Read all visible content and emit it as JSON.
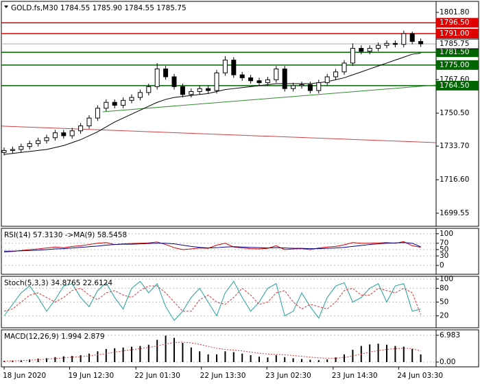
{
  "chart_data": [
    {
      "type": "candlestick",
      "title": "GOLD.fs,M30  1784.55 1785.90 1784.55 1785.75",
      "ylim": [
        1692.9,
        1807.4
      ],
      "yticks": [
        {
          "value": 1801.8,
          "label": "1801.80"
        },
        {
          "value": 1767.6,
          "label": "1767.60"
        },
        {
          "value": 1750.5,
          "label": "1750.50"
        },
        {
          "value": 1733.7,
          "label": "1733.70"
        },
        {
          "value": 1716.6,
          "label": "1716.60"
        },
        1699.55
      ],
      "open": [
        1730.5,
        1731.5,
        1732.0,
        1733.5,
        1735.0,
        1736.5,
        1738.0,
        1740.5,
        1739.0,
        1741.5,
        1744.0,
        1748.0,
        1753.0,
        1756.0,
        1754.5,
        1757.0,
        1758.5,
        1761.0,
        1764.0,
        1773.0,
        1769.0,
        1764.0,
        1760.0,
        1761.5,
        1763.0,
        1762.0,
        1771.0,
        1777.5,
        1770.0,
        1768.5,
        1767.0,
        1766.0,
        1767.5,
        1773.0,
        1763.0,
        1764.5,
        1765.0,
        1762.0,
        1766.0,
        1769.0,
        1771.5,
        1776.0,
        1783.5,
        1782.0,
        1783.5,
        1785.0,
        1786.0,
        1785.5,
        1791.0,
        1787.0
      ],
      "high": [
        1733.0,
        1733.5,
        1735.0,
        1736.5,
        1738.0,
        1739.5,
        1742.0,
        1742.0,
        1743.0,
        1745.5,
        1749.5,
        1754.5,
        1757.5,
        1757.5,
        1758.5,
        1760.0,
        1762.5,
        1765.5,
        1776.0,
        1774.5,
        1770.5,
        1765.5,
        1763.0,
        1764.5,
        1764.5,
        1772.5,
        1779.5,
        1779.0,
        1771.5,
        1770.0,
        1768.5,
        1769.0,
        1774.5,
        1774.5,
        1766.0,
        1766.5,
        1766.5,
        1767.5,
        1770.5,
        1773.0,
        1777.5,
        1786.0,
        1785.0,
        1785.0,
        1786.5,
        1787.5,
        1787.5,
        1792.5,
        1792.0,
        1788.5
      ],
      "low": [
        1729.0,
        1730.0,
        1730.5,
        1732.0,
        1733.5,
        1735.0,
        1736.5,
        1737.5,
        1737.5,
        1740.0,
        1742.5,
        1746.5,
        1751.5,
        1753.0,
        1753.0,
        1755.5,
        1757.0,
        1759.5,
        1762.5,
        1767.5,
        1762.5,
        1758.5,
        1758.5,
        1760.0,
        1760.5,
        1760.5,
        1769.5,
        1768.5,
        1767.0,
        1765.5,
        1764.5,
        1764.5,
        1766.0,
        1761.5,
        1761.5,
        1763.0,
        1760.5,
        1760.5,
        1764.5,
        1767.5,
        1770.0,
        1774.5,
        1780.5,
        1780.5,
        1782.0,
        1783.5,
        1784.0,
        1784.0,
        1785.5,
        1784.25
      ],
      "close": [
        1731.5,
        1732.0,
        1733.5,
        1735.0,
        1736.5,
        1738.0,
        1740.5,
        1739.0,
        1741.5,
        1744.0,
        1748.0,
        1753.0,
        1756.0,
        1754.5,
        1757.0,
        1758.5,
        1761.0,
        1764.0,
        1773.0,
        1769.0,
        1764.0,
        1760.0,
        1761.5,
        1763.0,
        1762.0,
        1771.0,
        1777.5,
        1770.0,
        1768.5,
        1767.0,
        1766.0,
        1767.5,
        1773.0,
        1763.0,
        1764.5,
        1765.0,
        1762.0,
        1766.0,
        1769.0,
        1771.5,
        1776.0,
        1783.5,
        1782.0,
        1783.5,
        1785.0,
        1786.0,
        1785.5,
        1791.0,
        1787.0,
        1785.75
      ],
      "ma": {
        "color": "#000000",
        "values": [
          1729.5,
          1730.0,
          1730.5,
          1731.0,
          1731.5,
          1732.0,
          1733.0,
          1734.0,
          1735.5,
          1737.0,
          1739.0,
          1741.0,
          1743.5,
          1746.0,
          1748.0,
          1750.0,
          1752.0,
          1754.0,
          1756.0,
          1757.5,
          1758.5,
          1759.0,
          1759.5,
          1760.0,
          1760.5,
          1761.5,
          1762.5,
          1763.0,
          1763.5,
          1764.0,
          1764.5,
          1765.0,
          1765.5,
          1765.5,
          1765.5,
          1765.5,
          1765.5,
          1766.0,
          1766.5,
          1767.5,
          1768.5,
          1770.0,
          1771.5,
          1773.0,
          1774.5,
          1776.0,
          1777.5,
          1779.0,
          1780.5,
          1781.0
        ]
      },
      "trendlines": [
        {
          "color": "#2e8b2e",
          "x": [
            11.6,
            50.8
          ],
          "y": [
            1751.2,
            1764.8
          ]
        },
        {
          "color": "#d04040",
          "x": [
            -0.3,
            50.8
          ],
          "y": [
            1743.9,
            1735.5
          ]
        }
      ],
      "levels": [
        {
          "value": 1796.5,
          "label": "1796.50",
          "color": "#e00000"
        },
        {
          "value": 1791.0,
          "label": "1791.00",
          "color": "#e00000"
        },
        {
          "value": 1781.5,
          "label": "1781.50",
          "color": "#006400"
        },
        {
          "value": 1775.0,
          "label": "1775.00",
          "color": "#006400"
        },
        {
          "value": 1764.5,
          "label": "1764.50",
          "color": "#006400"
        }
      ],
      "current": {
        "value": 1785.75,
        "label": "1785.75"
      }
    },
    {
      "type": "line",
      "title": "RSI(14) 57.3130 ->MA(9) 58.5458",
      "ylim": [
        -28,
        117
      ],
      "yticks": [
        100,
        70,
        50,
        30,
        0
      ],
      "series": [
        {
          "color": "#d00000",
          "style": "solid",
          "values": [
            42,
            44,
            47,
            50,
            52,
            55,
            58,
            56,
            60,
            62,
            66,
            70,
            72,
            66,
            68,
            69,
            70,
            71,
            74,
            66,
            56,
            50,
            52,
            55,
            54,
            64,
            70,
            58,
            55,
            53,
            52,
            54,
            62,
            50,
            52,
            53,
            50,
            55,
            58,
            60,
            65,
            72,
            70,
            70,
            71,
            72,
            70,
            75,
            62,
            57.313
          ]
        },
        {
          "color": "#00008b",
          "style": "solid",
          "values": [
            45,
            45,
            46,
            47,
            48,
            50,
            52,
            53,
            55,
            57,
            59,
            61,
            64,
            66,
            67,
            67,
            68,
            69,
            70,
            70,
            68,
            64,
            60,
            57,
            55,
            56,
            58,
            59,
            58,
            57,
            56,
            55,
            56,
            55,
            54,
            54,
            53,
            53,
            54,
            55,
            57,
            60,
            63,
            66,
            68,
            70,
            71,
            72,
            70,
            58.5458
          ]
        }
      ]
    },
    {
      "type": "line",
      "title": "Stoch(5,3,3) 34.8765 22.6124",
      "ylim": [
        -5.9,
        105.9
      ],
      "yticks": [
        100,
        80,
        50,
        20
      ],
      "series": [
        {
          "color": "#20a0a0",
          "style": "solid",
          "values": [
            20,
            45,
            70,
            85,
            60,
            30,
            55,
            85,
            90,
            60,
            40,
            75,
            92,
            60,
            35,
            80,
            95,
            70,
            90,
            40,
            10,
            30,
            60,
            80,
            50,
            20,
            70,
            95,
            60,
            30,
            50,
            80,
            90,
            20,
            30,
            70,
            40,
            15,
            60,
            85,
            92,
            50,
            60,
            80,
            90,
            50,
            85,
            90,
            30,
            34.8765
          ]
        },
        {
          "color": "#e03030",
          "style": "dashed",
          "values": [
            30,
            35,
            50,
            65,
            70,
            60,
            50,
            60,
            75,
            80,
            65,
            55,
            70,
            75,
            65,
            60,
            75,
            85,
            85,
            70,
            50,
            30,
            30,
            55,
            65,
            50,
            45,
            60,
            80,
            65,
            45,
            50,
            70,
            75,
            50,
            35,
            45,
            40,
            35,
            50,
            75,
            80,
            65,
            65,
            80,
            75,
            70,
            80,
            70,
            22.6124
          ]
        }
      ]
    },
    {
      "type": "macd",
      "title": "MACD(12,26,9) 1.994 2.879",
      "ylim": [
        -1.25,
        8.4
      ],
      "yticks": [
        6.983,
        {
          "value": 0,
          "label": "0.00"
        }
      ],
      "histogram": {
        "color": "#000000",
        "values": [
          0.3,
          0.4,
          0.5,
          0.7,
          0.9,
          1.0,
          1.3,
          1.5,
          1.6,
          1.8,
          2.2,
          2.8,
          3.4,
          3.6,
          3.8,
          4.0,
          4.2,
          4.5,
          5.8,
          6.9,
          6.3,
          5.0,
          3.8,
          2.8,
          2.0,
          2.0,
          2.8,
          2.6,
          2.2,
          1.8,
          1.4,
          1.2,
          1.8,
          1.3,
          1.0,
          0.8,
          0.6,
          0.5,
          0.7,
          1.2,
          2.0,
          3.2,
          4.2,
          4.6,
          4.8,
          4.5,
          4.2,
          4.0,
          3.4,
          1.994
        ]
      },
      "signal": {
        "color": "#e03030",
        "values": [
          0.2,
          0.3,
          0.4,
          0.5,
          0.6,
          0.8,
          0.9,
          1.1,
          1.3,
          1.4,
          1.6,
          1.9,
          2.2,
          2.6,
          2.9,
          3.2,
          3.5,
          3.8,
          4.2,
          4.7,
          5.1,
          5.2,
          5.0,
          4.6,
          4.1,
          3.6,
          3.3,
          3.1,
          2.9,
          2.6,
          2.3,
          2.1,
          2.0,
          1.9,
          1.7,
          1.5,
          1.3,
          1.1,
          1.0,
          1.0,
          1.2,
          1.6,
          2.1,
          2.6,
          3.0,
          3.3,
          3.5,
          3.6,
          3.5,
          2.879
        ]
      },
      "xticks": [
        {
          "value": 0,
          "label": "18 Jun 2020"
        },
        {
          "value": 7.7,
          "label": "19 Jun 12:30"
        },
        {
          "value": 15.5,
          "label": "22 Jun 01:30"
        },
        {
          "value": 23.2,
          "label": "22 Jun 13:30"
        },
        {
          "value": 30.9,
          "label": "23 Jun 02:30"
        },
        {
          "value": 38.7,
          "label": "23 Jun 14:30"
        },
        {
          "value": 46.4,
          "label": "24 Jun 03:30"
        }
      ]
    }
  ]
}
